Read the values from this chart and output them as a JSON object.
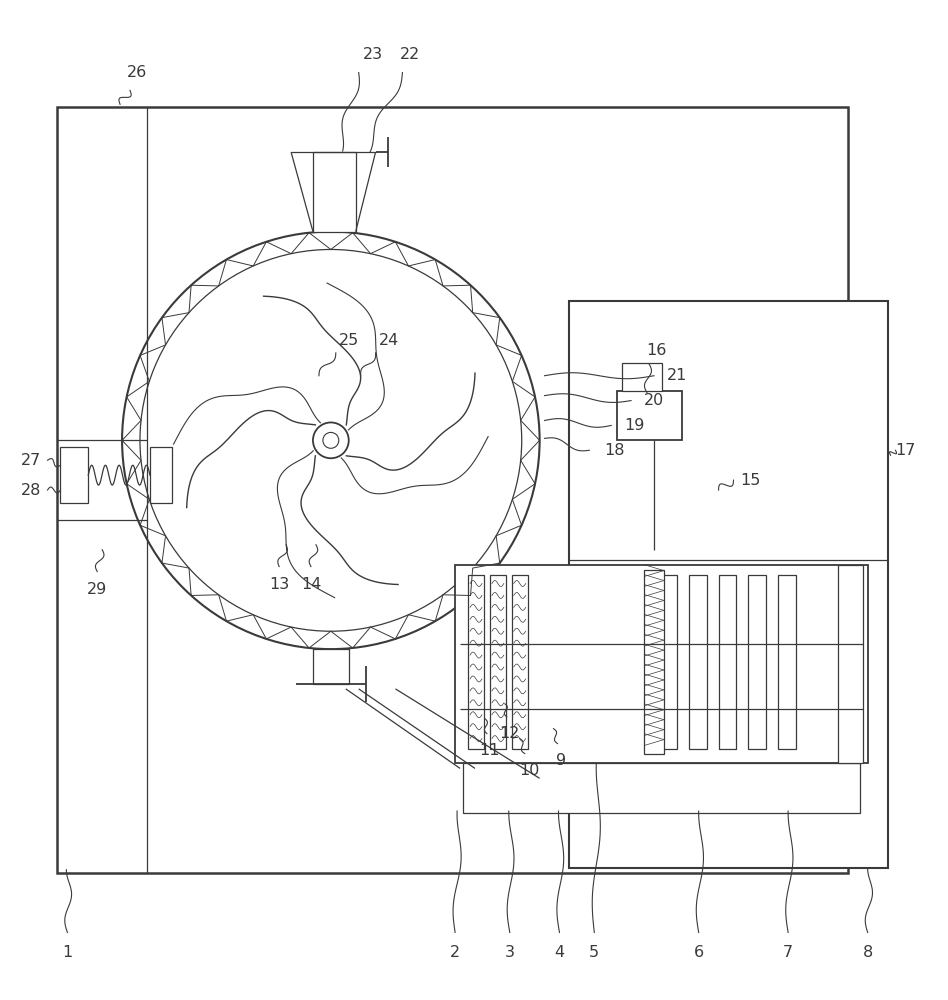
{
  "bg_color": "#ffffff",
  "line_color": "#3a3a3a",
  "lw": 1.3,
  "thin_lw": 0.9,
  "fig_width": 9.48,
  "fig_height": 10.0
}
